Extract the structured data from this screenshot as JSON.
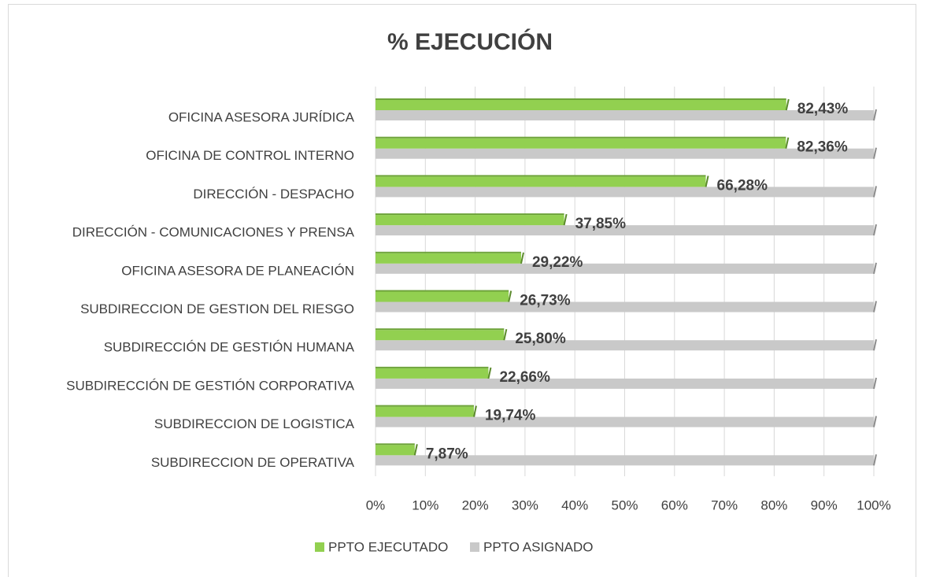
{
  "chart_data": {
    "type": "bar",
    "orientation": "horizontal",
    "title": "% EJECUCIÓN",
    "categories": [
      "OFICINA ASESORA JURÍDICA",
      "OFICINA DE CONTROL INTERNO",
      "DIRECCIÓN - DESPACHO",
      "DIRECCIÓN  - COMUNICACIONES Y PRENSA",
      "OFICINA ASESORA DE PLANEACIÓN",
      "SUBDIRECCION DE GESTION DEL RIESGO",
      "SUBDIRECCIÓN DE GESTIÓN HUMANA",
      "SUBDIRECCIÓN DE GESTIÓN CORPORATIVA",
      "SUBDIRECCION DE LOGISTICA",
      "SUBDIRECCION DE OPERATIVA"
    ],
    "series": [
      {
        "name": "PPTO EJECUTADO",
        "color": "#92d050",
        "values": [
          82.43,
          82.36,
          66.28,
          37.85,
          29.22,
          26.73,
          25.8,
          22.66,
          19.74,
          7.87
        ],
        "value_labels": [
          "82,43%",
          "82,36%",
          "66,28%",
          "37,85%",
          "29,22%",
          "26,73%",
          "25,80%",
          "22,66%",
          "19,74%",
          "7,87%"
        ]
      },
      {
        "name": "PPTO ASIGNADO",
        "color": "#c9c9c9",
        "values": [
          100,
          100,
          100,
          100,
          100,
          100,
          100,
          100,
          100,
          100
        ]
      }
    ],
    "xlim": [
      0,
      100
    ],
    "xticks": [
      {
        "value": 0,
        "label": "0%"
      },
      {
        "value": 10,
        "label": "10%"
      },
      {
        "value": 20,
        "label": "20%"
      },
      {
        "value": 30,
        "label": "30%"
      },
      {
        "value": 40,
        "label": "40%"
      },
      {
        "value": 50,
        "label": "50%"
      },
      {
        "value": 60,
        "label": "60%"
      },
      {
        "value": 70,
        "label": "70%"
      },
      {
        "value": 80,
        "label": "80%"
      },
      {
        "value": 90,
        "label": "90%"
      },
      {
        "value": 100,
        "label": "100%"
      }
    ],
    "grid": true,
    "legend": "bottom"
  }
}
